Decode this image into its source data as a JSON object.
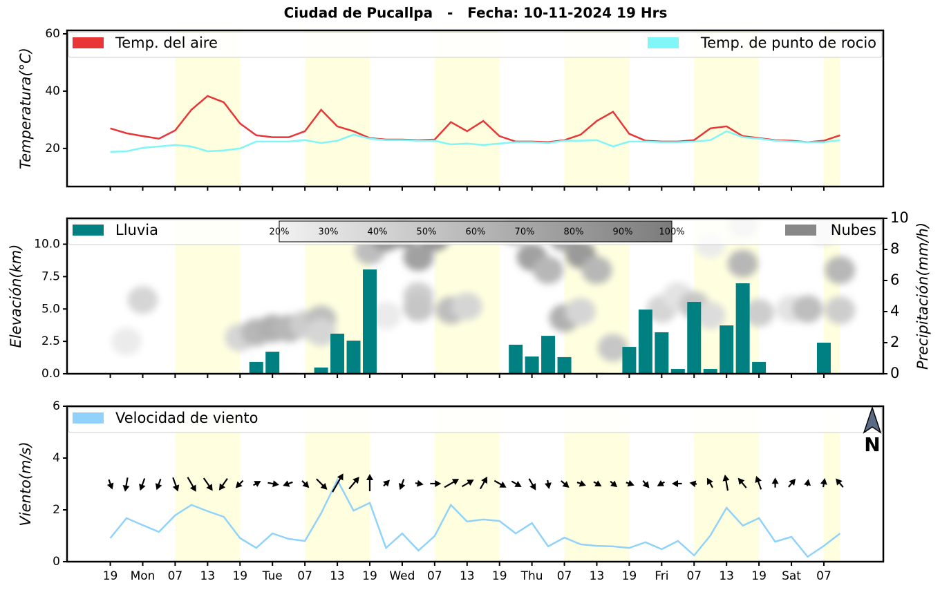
{
  "title": "Ciudad de Pucallpa   -   Fecha: 10-11-2024 19 Hrs",
  "chart_data": [
    {
      "type": "line",
      "ylabel": "Temperatura(°C)",
      "xlim": [
        -8,
        143
      ],
      "ylim": [
        6.7,
        61.2
      ],
      "yticks": [
        20,
        40,
        60
      ],
      "legend": "top",
      "x": [
        0,
        3,
        6,
        9,
        12,
        15,
        18,
        21,
        24,
        27,
        30,
        33,
        36,
        39,
        42,
        45,
        48,
        51,
        54,
        57,
        60,
        63,
        66,
        69,
        72,
        75,
        78,
        81,
        84,
        87,
        90,
        93,
        96,
        99,
        102,
        105,
        108,
        111,
        114,
        117,
        120,
        123,
        126,
        129,
        132,
        135
      ],
      "series": [
        {
          "name": "Temp. del aire",
          "color": "#e83535",
          "values": [
            27.0,
            25.3,
            24.3,
            23.4,
            26.3,
            33.5,
            38.3,
            36.1,
            28.7,
            24.6,
            23.9,
            23.9,
            26.0,
            33.5,
            27.7,
            26.0,
            23.6,
            23.1,
            23.1,
            22.9,
            23.1,
            29.2,
            26.0,
            29.6,
            24.3,
            22.4,
            22.4,
            22.2,
            22.9,
            24.8,
            29.6,
            32.8,
            25.1,
            22.7,
            22.4,
            22.4,
            22.9,
            27.0,
            27.7,
            24.3,
            23.6,
            22.9,
            22.7,
            22.2,
            22.7,
            24.6
          ]
        },
        {
          "name": "Temp. de punto de rocio",
          "color": "#80f6f6",
          "values": [
            18.8,
            19.0,
            20.2,
            20.7,
            21.2,
            20.7,
            19.0,
            19.3,
            20.0,
            22.4,
            22.4,
            22.4,
            22.9,
            21.9,
            22.7,
            24.8,
            23.4,
            22.9,
            22.9,
            22.7,
            22.7,
            21.4,
            21.7,
            21.2,
            21.7,
            22.2,
            22.2,
            21.9,
            22.7,
            22.7,
            22.9,
            20.7,
            22.4,
            22.4,
            22.2,
            22.2,
            22.4,
            22.9,
            26.0,
            23.9,
            23.4,
            22.7,
            22.4,
            22.2,
            22.2,
            22.9
          ]
        }
      ]
    },
    {
      "type": "bar",
      "ylabel": "Elevación(km)",
      "y2label": "Precipitación(mm/h)",
      "xlim": [
        -8,
        143
      ],
      "ylim": [
        0,
        12
      ],
      "yticks": [
        {
          "value": 0,
          "label": "0.0"
        },
        {
          "value": 2.5,
          "label": "2.5"
        },
        {
          "value": 5,
          "label": "5.0"
        },
        {
          "value": 7.5,
          "label": "7.5"
        },
        {
          "value": 10,
          "label": "10.0"
        }
      ],
      "y2lim": [
        0,
        10
      ],
      "y2ticks": [
        0,
        2,
        4,
        6,
        8,
        10
      ],
      "x": [
        0,
        3,
        6,
        9,
        12,
        15,
        18,
        21,
        24,
        27,
        30,
        33,
        36,
        39,
        42,
        45,
        48,
        51,
        54,
        57,
        60,
        63,
        66,
        69,
        72,
        75,
        78,
        81,
        84,
        87,
        90,
        93,
        96,
        99,
        102,
        105,
        108,
        111,
        114,
        117,
        120,
        123,
        126,
        129,
        132,
        135
      ],
      "series": [
        {
          "name": "Lluvia",
          "color": "#008080",
          "axis": "y2",
          "values": [
            0,
            0,
            0,
            0,
            0,
            0,
            0,
            0,
            0,
            0.76,
            1.42,
            0.05,
            0,
            0.4,
            2.58,
            2.13,
            6.71,
            0,
            0,
            0,
            0.05,
            0,
            0,
            0,
            0,
            1.87,
            1.11,
            2.44,
            1.07,
            0,
            0.05,
            0,
            1.73,
            4.13,
            2.67,
            0.31,
            4.62,
            0.31,
            3.11,
            5.82,
            0.76,
            0,
            0,
            0,
            2.0,
            0
          ]
        }
      ],
      "clouds": {
        "name": "Nubes",
        "color": "#888888",
        "colorbar": [
          {
            "value": 20,
            "label": "20%"
          },
          {
            "value": 30,
            "label": "30%"
          },
          {
            "value": 40,
            "label": "40%"
          },
          {
            "value": 50,
            "label": "50%"
          },
          {
            "value": 60,
            "label": "60%"
          },
          {
            "value": 70,
            "label": "70%"
          },
          {
            "value": 80,
            "label": "80%"
          },
          {
            "value": 90,
            "label": "90%"
          },
          {
            "value": 100,
            "label": "100%"
          }
        ],
        "x": [
          6,
          3,
          24,
          27,
          30,
          33,
          36,
          39,
          39,
          48,
          51,
          54,
          57,
          60,
          57,
          57,
          63,
          66,
          51,
          75,
          78,
          81,
          84,
          87,
          90,
          84,
          87,
          93,
          102,
          105,
          108,
          111,
          117,
          117,
          111,
          120,
          126,
          129,
          135,
          135,
          132
        ],
        "elevation": [
          5.7,
          2.5,
          2.8,
          3.2,
          3.5,
          3.5,
          3.8,
          4.2,
          3.2,
          9.5,
          10.5,
          10.8,
          9,
          10.5,
          6,
          5.1,
          4.9,
          5.2,
          4.5,
          11,
          9,
          8,
          10.5,
          9.2,
          8,
          4.3,
          4.8,
          2.0,
          5,
          6,
          5.3,
          4.5,
          11.5,
          8.5,
          10,
          4.7,
          5,
          5.0,
          4.9,
          8,
          11
        ],
        "cover": [
          40,
          25,
          40,
          60,
          65,
          60,
          45,
          55,
          40,
          55,
          80,
          85,
          75,
          80,
          45,
          50,
          55,
          40,
          25,
          60,
          75,
          60,
          70,
          80,
          60,
          65,
          40,
          50,
          40,
          30,
          50,
          35,
          40,
          60,
          25,
          45,
          30,
          55,
          45,
          60,
          30
        ]
      }
    },
    {
      "type": "line",
      "ylabel": "Viento(m/s)",
      "xlim": [
        -8,
        143
      ],
      "ylim": [
        0,
        6
      ],
      "yticks": [
        0,
        2,
        4,
        6
      ],
      "compass": "N",
      "xticks": [
        {
          "value": 0,
          "label": "19"
        },
        {
          "value": 6,
          "label": "Mon"
        },
        {
          "value": 12,
          "label": "07"
        },
        {
          "value": 18,
          "label": "13"
        },
        {
          "value": 24,
          "label": "19"
        },
        {
          "value": 30,
          "label": "Tue"
        },
        {
          "value": 36,
          "label": "07"
        },
        {
          "value": 42,
          "label": "13"
        },
        {
          "value": 48,
          "label": "19"
        },
        {
          "value": 54,
          "label": "Wed"
        },
        {
          "value": 60,
          "label": "07"
        },
        {
          "value": 66,
          "label": "13"
        },
        {
          "value": 72,
          "label": "19"
        },
        {
          "value": 78,
          "label": "Thu"
        },
        {
          "value": 84,
          "label": "07"
        },
        {
          "value": 90,
          "label": "13"
        },
        {
          "value": 96,
          "label": "19"
        },
        {
          "value": 102,
          "label": "Fri"
        },
        {
          "value": 108,
          "label": "07"
        },
        {
          "value": 114,
          "label": "13"
        },
        {
          "value": 120,
          "label": "19"
        },
        {
          "value": 126,
          "label": "Sat"
        },
        {
          "value": 132,
          "label": "07"
        }
      ],
      "x": [
        0,
        3,
        6,
        9,
        12,
        15,
        18,
        21,
        24,
        27,
        30,
        33,
        36,
        39,
        42,
        45,
        48,
        51,
        54,
        57,
        60,
        63,
        66,
        69,
        72,
        75,
        78,
        81,
        84,
        87,
        90,
        93,
        96,
        99,
        102,
        105,
        108,
        111,
        114,
        117,
        120,
        123,
        126,
        129,
        132,
        135
      ],
      "series": [
        {
          "name": "Velocidad de viento",
          "color": "#90d2fa",
          "values": [
            0.91,
            1.68,
            1.41,
            1.15,
            1.79,
            2.19,
            1.95,
            1.73,
            0.91,
            0.53,
            1.09,
            0.88,
            0.8,
            1.87,
            3.15,
            1.97,
            2.27,
            0.53,
            1.09,
            0.43,
            0.99,
            2.19,
            1.55,
            1.63,
            1.57,
            1.09,
            1.49,
            0.59,
            0.93,
            0.67,
            0.61,
            0.59,
            0.53,
            0.75,
            0.48,
            0.8,
            0.24,
            1.01,
            2.08,
            1.39,
            1.68,
            0.77,
            0.96,
            0.19,
            0.61,
            1.09
          ],
          "directions": [
            160,
            190,
            200,
            200,
            160,
            150,
            145,
            215,
            225,
            60,
            100,
            250,
            135,
            135,
            30,
            40,
            0,
            45,
            200,
            100,
            90,
            60,
            60,
            30,
            120,
            120,
            150,
            170,
            130,
            110,
            120,
            130,
            110,
            140,
            240,
            270,
            280,
            330,
            350,
            320,
            340,
            0,
            40,
            10,
            10,
            320
          ]
        }
      ]
    }
  ]
}
